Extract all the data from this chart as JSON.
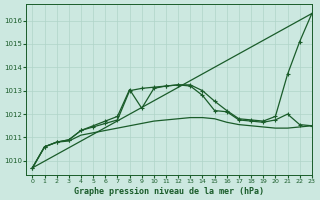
{
  "title": "Graphe pression niveau de la mer (hPa)",
  "background_color": "#cce8e0",
  "grid_color": "#b0d4c8",
  "line_color": "#1a5c2a",
  "xlim": [
    -0.5,
    23
  ],
  "ylim": [
    1009.4,
    1016.7
  ],
  "yticks": [
    1010,
    1011,
    1012,
    1013,
    1014,
    1015,
    1016
  ],
  "xticks": [
    0,
    1,
    2,
    3,
    4,
    5,
    6,
    7,
    8,
    9,
    10,
    11,
    12,
    13,
    14,
    15,
    16,
    17,
    18,
    19,
    20,
    21,
    22,
    23
  ],
  "series": [
    {
      "x": [
        0,
        23
      ],
      "y": [
        1009.7,
        1016.3
      ],
      "marker": null,
      "lw": 0.9
    },
    {
      "x": [
        0,
        1,
        2,
        3,
        4,
        5,
        6,
        7,
        8,
        9,
        10,
        11,
        12,
        13,
        14,
        15,
        16,
        17,
        18,
        19,
        20,
        21,
        22,
        23
      ],
      "y": [
        1009.7,
        1010.6,
        1010.8,
        1010.9,
        1011.3,
        1011.5,
        1011.7,
        1011.9,
        1013.05,
        1012.25,
        1013.1,
        1013.2,
        1013.25,
        1013.25,
        1013.0,
        1012.55,
        1012.15,
        1011.8,
        1011.75,
        1011.7,
        1011.9,
        1013.7,
        1015.1,
        1016.3
      ],
      "marker": "+",
      "lw": 0.9
    },
    {
      "x": [
        0,
        1,
        2,
        3,
        4,
        5,
        6,
        7,
        8,
        9,
        10,
        11,
        12,
        13,
        14,
        15,
        16,
        17,
        18,
        19,
        20,
        21,
        22,
        23
      ],
      "y": [
        1009.7,
        1010.6,
        1010.8,
        1010.9,
        1011.3,
        1011.45,
        1011.6,
        1011.75,
        1013.0,
        1013.1,
        1013.15,
        1013.2,
        1013.25,
        1013.2,
        1012.8,
        1012.15,
        1012.1,
        1011.75,
        1011.7,
        1011.65,
        1011.75,
        1012.0,
        1011.55,
        1011.5
      ],
      "marker": "+",
      "lw": 0.9
    },
    {
      "x": [
        0,
        1,
        2,
        3,
        4,
        5,
        6,
        7,
        8,
        9,
        10,
        11,
        12,
        13,
        14,
        15,
        16,
        17,
        18,
        19,
        20,
        21,
        22,
        23
      ],
      "y": [
        1009.7,
        1010.6,
        1010.8,
        1010.85,
        1011.1,
        1011.2,
        1011.3,
        1011.4,
        1011.5,
        1011.6,
        1011.7,
        1011.75,
        1011.8,
        1011.85,
        1011.85,
        1011.8,
        1011.65,
        1011.55,
        1011.5,
        1011.45,
        1011.4,
        1011.4,
        1011.45,
        1011.5
      ],
      "marker": null,
      "lw": 0.9
    }
  ]
}
